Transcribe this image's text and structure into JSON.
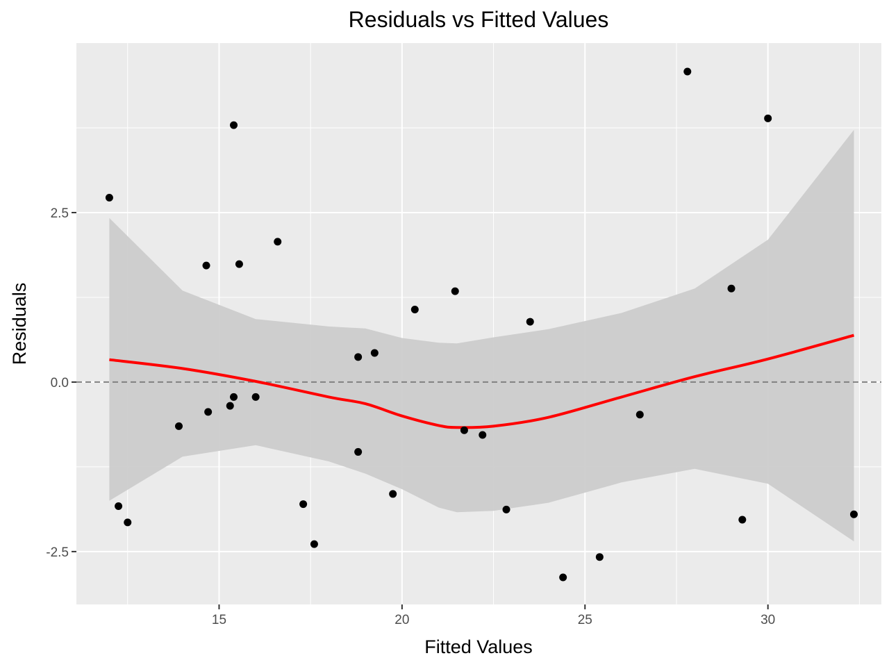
{
  "chart_data": {
    "type": "scatter",
    "title": "Residuals vs Fitted Values",
    "xlabel": "Fitted Values",
    "ylabel": "Residuals",
    "xlim": [
      11.1,
      33.1
    ],
    "ylim": [
      -3.28,
      5.0
    ],
    "x_ticks": [
      {
        "value": 15,
        "label": "15"
      },
      {
        "value": 20,
        "label": "20"
      },
      {
        "value": 25,
        "label": "25"
      },
      {
        "value": 30,
        "label": "30"
      }
    ],
    "y_ticks": [
      {
        "value": -2.5,
        "label": "-2.5"
      },
      {
        "value": 0,
        "label": "0.0"
      },
      {
        "value": 2.5,
        "label": "2.5"
      }
    ],
    "grid": true,
    "reference_line": {
      "y": 0,
      "style": "dashed",
      "color": "#808080"
    },
    "points": {
      "color": "#000000",
      "x": [
        12.0,
        12.25,
        12.5,
        13.9,
        14.65,
        14.7,
        15.3,
        15.4,
        15.4,
        15.55,
        16.0,
        16.6,
        17.3,
        17.6,
        18.8,
        18.8,
        19.25,
        19.75,
        20.35,
        21.45,
        21.7,
        22.2,
        22.85,
        23.5,
        24.4,
        25.4,
        26.5,
        27.8,
        29.0,
        29.3,
        30.0,
        32.35
      ],
      "y": [
        2.72,
        -1.83,
        -2.07,
        -0.65,
        1.72,
        -0.44,
        -0.35,
        3.79,
        -0.22,
        1.74,
        -0.22,
        2.07,
        -1.8,
        -2.39,
        0.37,
        -1.03,
        0.43,
        -1.65,
        1.07,
        1.34,
        -0.71,
        -0.78,
        -1.88,
        0.89,
        -2.88,
        -2.58,
        -0.48,
        4.58,
        1.38,
        -2.03,
        3.89,
        -1.95
      ]
    },
    "smooth": {
      "method": "loess",
      "color": "#ff0000",
      "x": [
        12.0,
        14.0,
        16.0,
        18.0,
        19.0,
        20.0,
        21.0,
        21.5,
        22.5,
        24.0,
        26.0,
        28.0,
        30.0,
        32.35
      ],
      "y": [
        0.33,
        0.2,
        0.01,
        -0.22,
        -0.32,
        -0.5,
        -0.64,
        -0.67,
        -0.65,
        -0.52,
        -0.22,
        0.08,
        0.34,
        0.69
      ],
      "band_upper": [
        2.42,
        1.35,
        0.93,
        0.82,
        0.79,
        0.65,
        0.58,
        0.57,
        0.66,
        0.78,
        1.02,
        1.38,
        2.1,
        3.72
      ],
      "band_lower": [
        -1.75,
        -1.1,
        -0.93,
        -1.17,
        -1.35,
        -1.58,
        -1.85,
        -1.92,
        -1.9,
        -1.78,
        -1.48,
        -1.28,
        -1.5,
        -2.35
      ],
      "band_color": "#cccccc"
    }
  }
}
